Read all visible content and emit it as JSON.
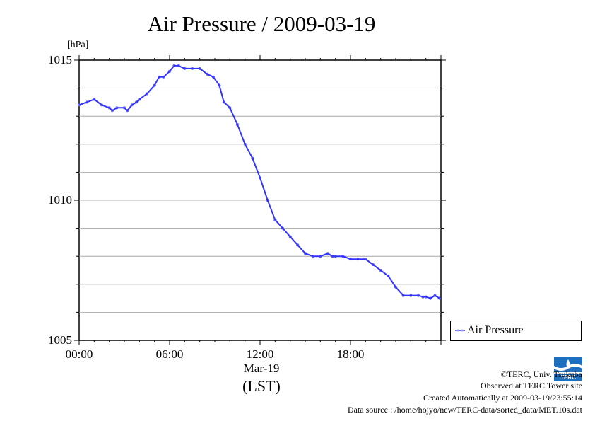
{
  "title": "Air Pressure / 2009-03-19",
  "unit_label": "[hPa]",
  "date_label": "Mar-19",
  "timezone_label": "(LST)",
  "legend_label": "Air Pressure",
  "credits": {
    "copyright": "©TERC, Univ. Tsukuba",
    "observed": "Observed at TERC Tower site",
    "created": "Created Automatically at 2009-03-19/23:55:14",
    "source": "Data source : /home/hojyo/new/TERC-data/sorted_data/MET.10s.dat"
  },
  "logo_text": "TERC",
  "colors": {
    "series": "#3333ff",
    "point": "#9999ff",
    "grid": "#999999"
  },
  "chart_data": {
    "type": "line",
    "xlabel": "",
    "ylabel": "[hPa]",
    "xlim": [
      0,
      24
    ],
    "ylim": [
      1005,
      1015
    ],
    "yticks": [
      1005,
      1010,
      1015
    ],
    "ytick_labels": [
      "1005",
      "1010",
      "1015"
    ],
    "xticks": [
      0,
      6,
      12,
      18
    ],
    "xtick_labels": [
      "00:00",
      "06:00",
      "12:00",
      "18:00"
    ],
    "grid": true,
    "legend_position": "right, outside plot",
    "series": [
      {
        "name": "Air Pressure",
        "x": [
          0.0,
          0.5,
          1.0,
          1.5,
          2.0,
          2.2,
          2.5,
          3.0,
          3.2,
          3.5,
          3.8,
          4.0,
          4.5,
          5.0,
          5.3,
          5.6,
          6.0,
          6.3,
          6.6,
          7.0,
          7.5,
          8.0,
          8.5,
          8.9,
          9.3,
          9.6,
          10.0,
          10.5,
          11.0,
          11.5,
          12.0,
          12.5,
          13.0,
          13.5,
          14.0,
          14.5,
          15.0,
          15.5,
          16.0,
          16.5,
          16.8,
          17.0,
          17.5,
          18.0,
          18.5,
          19.0,
          19.5,
          20.0,
          20.5,
          21.0,
          21.5,
          22.0,
          22.5,
          22.8,
          23.0,
          23.3,
          23.6,
          23.9
        ],
        "y": [
          1013.4,
          1013.5,
          1013.6,
          1013.4,
          1013.3,
          1013.2,
          1013.3,
          1013.3,
          1013.2,
          1013.4,
          1013.5,
          1013.6,
          1013.8,
          1014.1,
          1014.4,
          1014.4,
          1014.6,
          1014.8,
          1014.8,
          1014.7,
          1014.7,
          1014.7,
          1014.5,
          1014.4,
          1014.1,
          1013.5,
          1013.3,
          1012.7,
          1012.0,
          1011.5,
          1010.8,
          1010.0,
          1009.3,
          1009.0,
          1008.7,
          1008.4,
          1008.1,
          1008.0,
          1008.0,
          1008.1,
          1008.0,
          1008.0,
          1008.0,
          1007.9,
          1007.9,
          1007.9,
          1007.7,
          1007.5,
          1007.3,
          1006.9,
          1006.6,
          1006.6,
          1006.6,
          1006.55,
          1006.55,
          1006.5,
          1006.6,
          1006.5
        ]
      }
    ]
  }
}
